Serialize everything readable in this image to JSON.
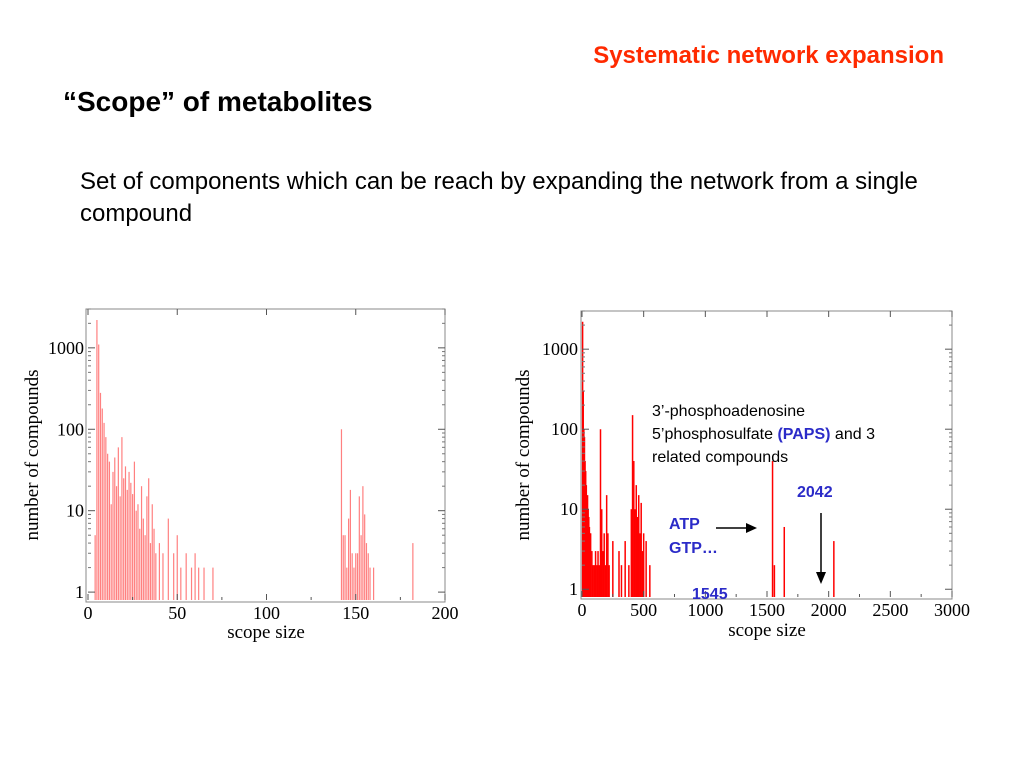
{
  "slide": {
    "header_title": "Systematic network expansion",
    "title": "“Scope” of metabolites",
    "body": "Set of components which can be reach by expanding the network from a single compound"
  },
  "colors": {
    "header": "#ff2a00",
    "bars_left": "#ff8080",
    "bars_right": "#ff0000",
    "annotation_blue": "#2b2bc8"
  },
  "annotations": {
    "paps_line1": "3’-phosphoadenosine",
    "paps_line2_prefix": "5’phosphosulfate ",
    "paps_highlight": "(PAPS)",
    "paps_line2_suffix": " and 3",
    "paps_line3": "related compounds",
    "label_2042": "2042",
    "atp": "ATP",
    "gtp": "GTP…",
    "label_1545": "1545"
  },
  "chart_data": [
    {
      "type": "bar",
      "xlabel": "scope size",
      "ylabel": "number of compounds",
      "xlim": [
        0,
        200
      ],
      "ylim": [
        0.8,
        3000
      ],
      "yscale": "log",
      "grid": false,
      "xticks": [
        "0",
        "50",
        "100",
        "150",
        "200"
      ],
      "yticks": [
        "1",
        "10",
        "100",
        "1000"
      ],
      "x": [
        4,
        5,
        6,
        7,
        8,
        9,
        10,
        11,
        12,
        13,
        14,
        15,
        16,
        17,
        18,
        19,
        20,
        21,
        22,
        23,
        24,
        25,
        26,
        27,
        28,
        29,
        30,
        31,
        32,
        33,
        34,
        35,
        36,
        37,
        38,
        40,
        42,
        45,
        48,
        50,
        52,
        55,
        58,
        60,
        62,
        65,
        70,
        142,
        143,
        144,
        145,
        146,
        147,
        148,
        149,
        150,
        151,
        152,
        153,
        154,
        155,
        156,
        157,
        158,
        160,
        182
      ],
      "values": [
        5,
        2200,
        1100,
        280,
        180,
        120,
        80,
        50,
        40,
        12,
        30,
        45,
        20,
        60,
        15,
        80,
        25,
        35,
        18,
        30,
        22,
        16,
        40,
        10,
        12,
        6,
        20,
        8,
        5,
        15,
        25,
        4,
        12,
        6,
        3,
        4,
        3,
        8,
        3,
        5,
        2,
        3,
        2,
        3,
        2,
        2,
        2,
        100,
        5,
        5,
        2,
        8,
        18,
        3,
        2,
        3,
        3,
        15,
        5,
        20,
        9,
        4,
        3,
        2,
        2,
        4
      ]
    },
    {
      "type": "bar",
      "xlabel": "scope size",
      "ylabel": "number of compounds",
      "xlim": [
        0,
        3000
      ],
      "ylim": [
        0.8,
        3000
      ],
      "yscale": "log",
      "grid": false,
      "xticks": [
        "0",
        "500",
        "1000",
        "1500",
        "2000",
        "2500",
        "3000"
      ],
      "yticks": [
        "1",
        "10",
        "100",
        "1000"
      ],
      "x": [
        5,
        10,
        15,
        20,
        25,
        30,
        35,
        40,
        45,
        50,
        55,
        60,
        65,
        70,
        80,
        90,
        100,
        110,
        120,
        130,
        140,
        150,
        160,
        170,
        180,
        190,
        200,
        210,
        220,
        250,
        300,
        320,
        350,
        380,
        400,
        410,
        420,
        430,
        440,
        450,
        460,
        470,
        480,
        490,
        500,
        520,
        550,
        1545,
        1560,
        1640,
        2042
      ],
      "values": [
        2200,
        300,
        100,
        80,
        40,
        30,
        20,
        12,
        15,
        10,
        8,
        6,
        5,
        5,
        3,
        2,
        2,
        3,
        2,
        3,
        2,
        100,
        10,
        3,
        5,
        2,
        15,
        5,
        2,
        4,
        3,
        2,
        4,
        2,
        10,
        150,
        40,
        10,
        20,
        8,
        15,
        5,
        12,
        3,
        5,
        4,
        2,
        40,
        2,
        6,
        4
      ]
    }
  ]
}
